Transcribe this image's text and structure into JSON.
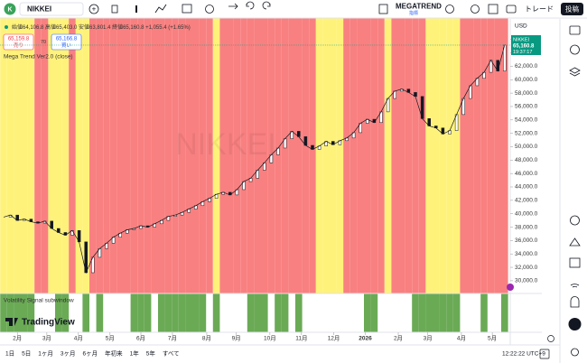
{
  "toolbar": {
    "symbol": "NIKKEI",
    "indicator": "MEGATREND",
    "indicator_sub": "指標",
    "trade": "トレード",
    "publish": "投稿"
  },
  "legend": {
    "ohlc": "始値64,106.8 高値65,403.0 安値63,801.4 終値65,160.8 +1,055.4 (+1.65%)",
    "sell_price": "65,159.8",
    "sell": "売り",
    "spread": "70",
    "buy_price": "65,166.8",
    "buy": "買い",
    "study": "Mega Trend Ver2.0 (close)",
    "sub_study": "Volatility Signal subwindow",
    "brand": "TradingView",
    "watermark": "NIKKEI"
  },
  "price_label": {
    "symbol": "NIKKEI",
    "price": "65,160.8",
    "countdown": "19:37:17"
  },
  "currency": "USD",
  "bottom": {
    "ranges": [
      "1日",
      "5日",
      "1ヶ月",
      "3ヶ月",
      "6ヶ月",
      "年初来",
      "1年",
      "5年",
      "すべて"
    ],
    "clock": "12:22:22 UTC+9"
  },
  "chart_data": {
    "type": "line",
    "color": "#131722",
    "regime_colors": {
      "r": "#f98080",
      "y": "#fff27a"
    },
    "signal_color": "#6aaa55",
    "values": [
      39500,
      39800,
      39000,
      39200,
      38800,
      38600,
      38900,
      37800,
      37200,
      36800,
      37500,
      35800,
      31200,
      33500,
      34800,
      35600,
      36500,
      37100,
      37600,
      37800,
      38200,
      38000,
      38500,
      39000,
      39600,
      39800,
      40200,
      40700,
      41200,
      41800,
      42300,
      42900,
      43200,
      42800,
      43600,
      44800,
      45300,
      46500,
      47600,
      48800,
      49800,
      51200,
      52300,
      51500,
      50200,
      49600,
      50100,
      50800,
      50300,
      50900,
      51300,
      52100,
      53500,
      54100,
      53600,
      55200,
      57200,
      58300,
      58600,
      58100,
      57500,
      54200,
      53100,
      52800,
      51900,
      52400,
      54800,
      57200,
      59100,
      60200,
      61100,
      62900,
      61300,
      65160
    ],
    "regimes": [
      "y",
      "y",
      "y",
      "y",
      "y",
      "r",
      "r",
      "y",
      "y",
      "y",
      "r",
      "y",
      "y",
      "r",
      "r",
      "r",
      "r",
      "r",
      "r",
      "r",
      "r",
      "r",
      "r",
      "r",
      "r",
      "r",
      "r",
      "r",
      "r",
      "r",
      "r",
      "y",
      "r",
      "r",
      "r",
      "r",
      "r",
      "r",
      "r",
      "r",
      "r",
      "r",
      "r",
      "r",
      "r",
      "r",
      "y",
      "y",
      "y",
      "y",
      "r",
      "r",
      "r",
      "r",
      "r",
      "r",
      "y",
      "r",
      "r",
      "r",
      "r",
      "r",
      "y",
      "y",
      "y",
      "y",
      "y",
      "r",
      "r",
      "r",
      "r",
      "r",
      "r",
      "r"
    ],
    "signals": [
      1,
      1,
      1,
      1,
      1,
      0,
      0,
      0,
      1,
      1,
      0,
      0,
      1,
      0,
      1,
      0,
      0,
      0,
      0,
      1,
      1,
      1,
      0,
      1,
      1,
      1,
      1,
      1,
      1,
      1,
      0,
      1,
      0,
      0,
      0,
      0,
      1,
      1,
      1,
      0,
      1,
      1,
      0,
      1,
      0,
      0,
      0,
      0,
      0,
      0,
      0,
      0,
      0,
      1,
      1,
      0,
      0,
      0,
      0,
      0,
      1,
      1,
      1,
      1,
      1,
      1,
      1,
      0,
      0,
      0,
      1,
      0,
      0,
      1
    ],
    "xticks": [
      {
        "value": 2,
        "label": "2月"
      },
      {
        "value": 6.3,
        "label": "3月"
      },
      {
        "value": 10.9,
        "label": "4月"
      },
      {
        "value": 15.5,
        "label": "5月"
      },
      {
        "value": 20,
        "label": "6月"
      },
      {
        "value": 24.6,
        "label": "7月"
      },
      {
        "value": 29.6,
        "label": "8月"
      },
      {
        "value": 33.9,
        "label": "9月"
      },
      {
        "value": 38.8,
        "label": "10月"
      },
      {
        "value": 43.4,
        "label": "11月"
      },
      {
        "value": 48.1,
        "label": "12月"
      },
      {
        "value": 52.7,
        "label": "2026"
      },
      {
        "value": 57.5,
        "label": "2月"
      },
      {
        "value": 61.8,
        "label": "3月"
      },
      {
        "value": 66.7,
        "label": "4月"
      },
      {
        "value": 71.2,
        "label": "5月"
      },
      {
        "value": 75.5,
        "label": "6月"
      }
    ],
    "ylim": [
      28100,
      69200
    ],
    "yticks": [
      {
        "value": 30000,
        "label": "30,000.0"
      },
      {
        "value": 32000,
        "label": "32,000.0"
      },
      {
        "value": 34000,
        "label": "34,000.0"
      },
      {
        "value": 36000,
        "label": "36,000.0"
      },
      {
        "value": 38000,
        "label": "38,000.0"
      },
      {
        "value": 40000,
        "label": "40,000.0"
      },
      {
        "value": 42000,
        "label": "42,000.0"
      },
      {
        "value": 44000,
        "label": "44,000.0"
      },
      {
        "value": 46000,
        "label": "46,000.0"
      },
      {
        "value": 48000,
        "label": "48,000.0"
      },
      {
        "value": 50000,
        "label": "50,000.0"
      },
      {
        "value": 52000,
        "label": "52,000.0"
      },
      {
        "value": 54000,
        "label": "54,000.0"
      },
      {
        "value": 56000,
        "label": "56,000.0"
      },
      {
        "value": 58000,
        "label": "58,000.0"
      },
      {
        "value": 60000,
        "label": "60,000.0"
      },
      {
        "value": 62000,
        "label": "62,000.0"
      },
      {
        "value": 64000,
        "label": "64,000.0"
      },
      {
        "value": 66000,
        "label": "66,000.0"
      }
    ]
  }
}
